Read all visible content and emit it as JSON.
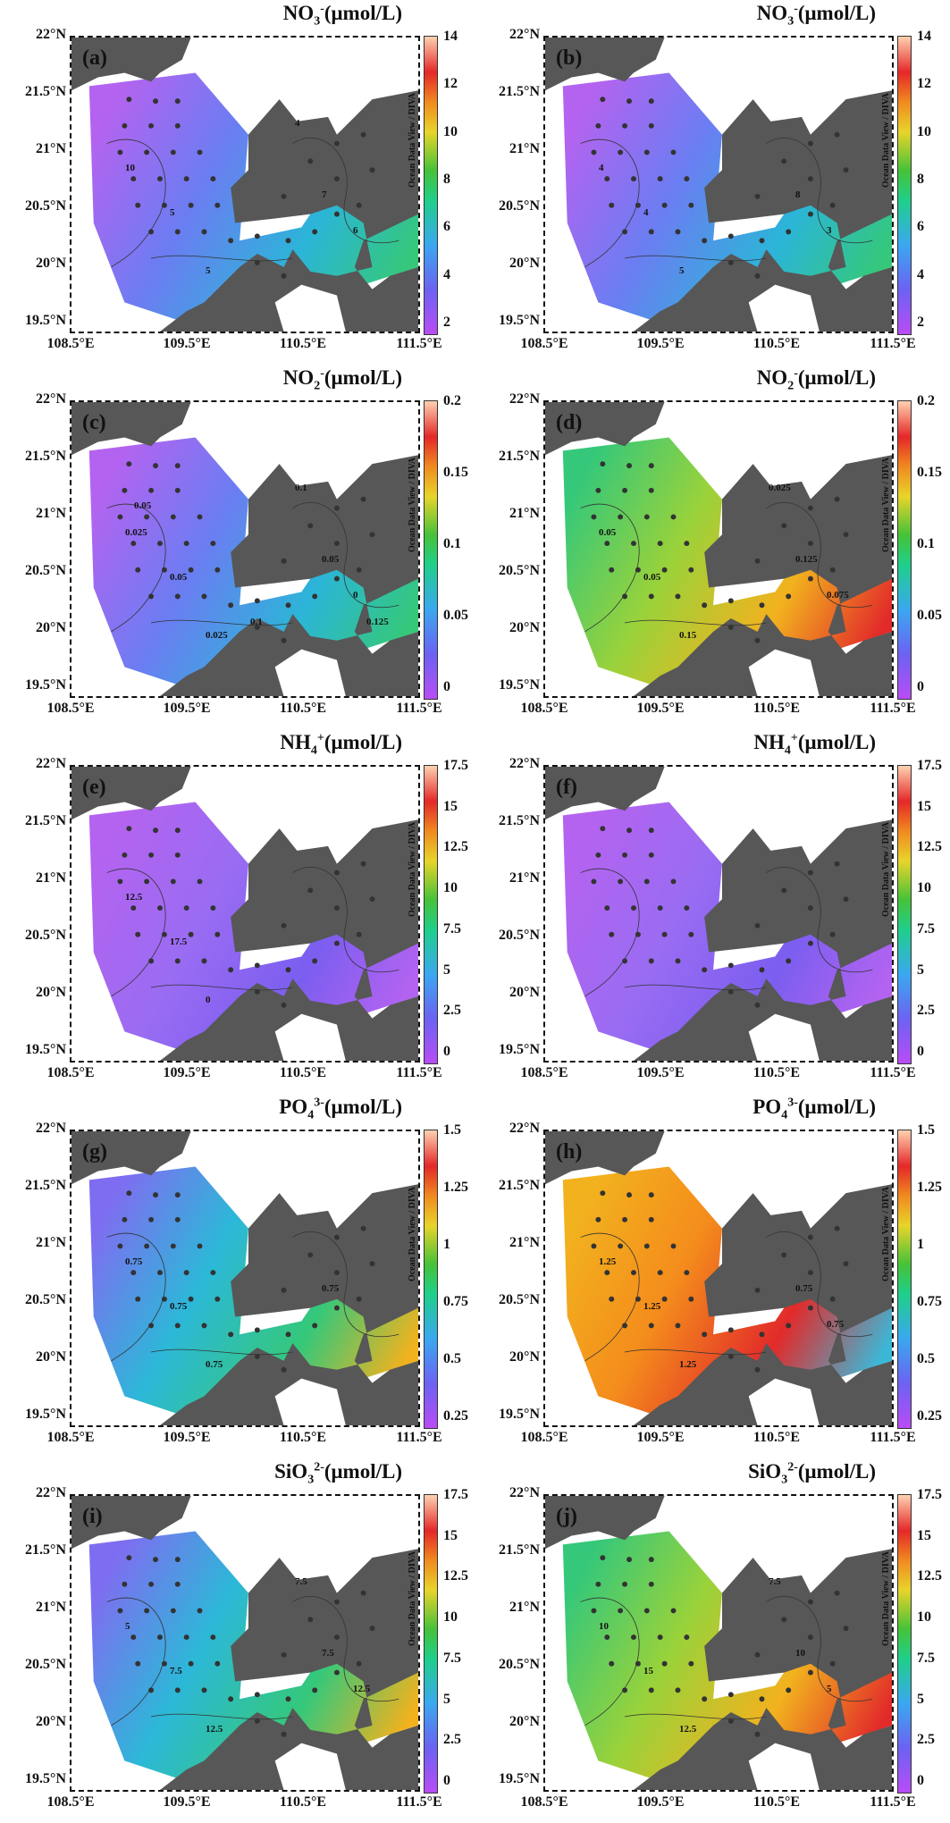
{
  "panels": [
    {
      "label": "(a)",
      "base": "NO",
      "ion_sub": "3",
      "ion_sup": "-",
      "unit": "(μmol/L)",
      "cbar_ticks": [
        "14",
        "12",
        "10",
        "8",
        "6",
        "4",
        "2"
      ],
      "contours": [
        "10",
        "5",
        "5",
        "7",
        "6",
        "4"
      ],
      "theme": "low-west"
    },
    {
      "label": "(b)",
      "base": "NO",
      "ion_sub": "3",
      "ion_sup": "-",
      "unit": "(μmol/L)",
      "cbar_ticks": [
        "14",
        "12",
        "10",
        "8",
        "6",
        "4",
        "2"
      ],
      "contours": [
        "4",
        "4",
        "5",
        "8",
        "3"
      ],
      "theme": "low-west"
    },
    {
      "label": "(c)",
      "base": "NO",
      "ion_sub": "2",
      "ion_sup": "-",
      "unit": "(μmol/L)",
      "cbar_ticks": [
        "0.2",
        "0.15",
        "0.1",
        "0.05",
        "0"
      ],
      "contours": [
        "0.025",
        "0.05",
        "0.025",
        "0.05",
        "0",
        "0.1",
        "0.05",
        "0.1",
        "0.125"
      ],
      "theme": "low-west"
    },
    {
      "label": "(d)",
      "base": "NO",
      "ion_sub": "2",
      "ion_sup": "-",
      "unit": "(μmol/L)",
      "cbar_ticks": [
        "0.2",
        "0.15",
        "0.1",
        "0.05",
        "0"
      ],
      "contours": [
        "0.05",
        "0.05",
        "0.15",
        "0.125",
        "0.075",
        "0.025"
      ],
      "theme": "high-east"
    },
    {
      "label": "(e)",
      "base": "NH",
      "ion_sub": "4",
      "ion_sup": "+",
      "unit": "(μmol/L)",
      "cbar_ticks": [
        "17.5",
        "15",
        "12.5",
        "10",
        "7.5",
        "5",
        "2.5",
        "0"
      ],
      "contours": [
        "12.5",
        "17.5",
        "0"
      ],
      "theme": "low-all"
    },
    {
      "label": "(f)",
      "base": "NH",
      "ion_sub": "4",
      "ion_sup": "+",
      "unit": "(μmol/L)",
      "cbar_ticks": [
        "17.5",
        "15",
        "12.5",
        "10",
        "7.5",
        "5",
        "2.5",
        "0"
      ],
      "contours": [],
      "theme": "low-all"
    },
    {
      "label": "(g)",
      "base": "PO",
      "ion_sub": "4",
      "ion_sup": "3-",
      "unit": "(μmol/L)",
      "cbar_ticks": [
        "1.5",
        "1.25",
        "1",
        "0.75",
        "0.5",
        "0.25"
      ],
      "contours": [
        "0.75",
        "0.75",
        "0.75",
        "0.75"
      ],
      "theme": "mid"
    },
    {
      "label": "(h)",
      "base": "PO",
      "ion_sub": "4",
      "ion_sup": "3-",
      "unit": "(μmol/L)",
      "cbar_ticks": [
        "1.5",
        "1.25",
        "1",
        "0.75",
        "0.5",
        "0.25"
      ],
      "contours": [
        "1.25",
        "1.25",
        "1.25",
        "0.75",
        "0.75"
      ],
      "theme": "high-all"
    },
    {
      "label": "(i)",
      "base": "SiO",
      "ion_sub": "3",
      "ion_sup": "2-",
      "unit": "(μmol/L)",
      "cbar_ticks": [
        "17.5",
        "15",
        "12.5",
        "10",
        "7.5",
        "5",
        "2.5",
        "0"
      ],
      "contours": [
        "5",
        "7.5",
        "12.5",
        "7.5",
        "12.5",
        "7.5"
      ],
      "theme": "mid"
    },
    {
      "label": "(j)",
      "base": "SiO",
      "ion_sub": "3",
      "ion_sup": "2-",
      "unit": "(μmol/L)",
      "cbar_ticks": [
        "17.5",
        "15",
        "12.5",
        "10",
        "7.5",
        "5",
        "2.5",
        "0"
      ],
      "contours": [
        "10",
        "15",
        "12.5",
        "10",
        "5",
        "7.5"
      ],
      "theme": "high-east"
    }
  ],
  "lat_labels": [
    "22°N",
    "21.5°N",
    "21°N",
    "20.5°N",
    "20°N",
    "19.5°N"
  ],
  "lon_labels": [
    "108.5°E",
    "109.5°E",
    "110.5°E",
    "111.5°E"
  ],
  "cbar_caption": "Ocean Data View / DIVA",
  "colors": {
    "land": "#575757",
    "low": "#b463f0",
    "mid": "#35c87a",
    "high": "#f2b21e",
    "peak": "#e22a2a"
  }
}
